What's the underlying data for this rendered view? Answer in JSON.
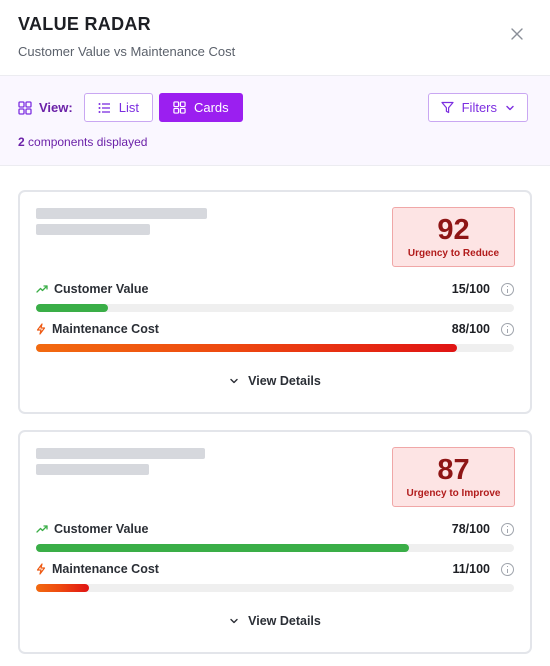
{
  "header": {
    "title": "VALUE RADAR",
    "subtitle": "Customer Value vs Maintenance Cost"
  },
  "toolbar": {
    "view_label": "View:",
    "list_label": "List",
    "cards_label": "Cards",
    "active_view": "Cards",
    "filters_label": "Filters",
    "count": "2",
    "count_suffix": " components displayed"
  },
  "colors": {
    "accent": "#9b1ff0",
    "value_bar": "#3aae47",
    "cost_bar": "#e01414",
    "badge_bg": "#fde4e4",
    "badge_text": "#8e1515"
  },
  "cards": [
    {
      "score": "92",
      "urgency_label": "Urgency to Reduce",
      "customer_value_label": "Customer Value",
      "customer_value": "15/100",
      "customer_value_fraction": 0.15,
      "maintenance_cost_label": "Maintenance Cost",
      "maintenance_cost": "88/100",
      "maintenance_cost_fraction": 0.88,
      "details_label": "View Details"
    },
    {
      "score": "87",
      "urgency_label": "Urgency to Improve",
      "customer_value_label": "Customer Value",
      "customer_value": "78/100",
      "customer_value_fraction": 0.78,
      "maintenance_cost_label": "Maintenance Cost",
      "maintenance_cost": "11/100",
      "maintenance_cost_fraction": 0.11,
      "details_label": "View Details"
    }
  ]
}
